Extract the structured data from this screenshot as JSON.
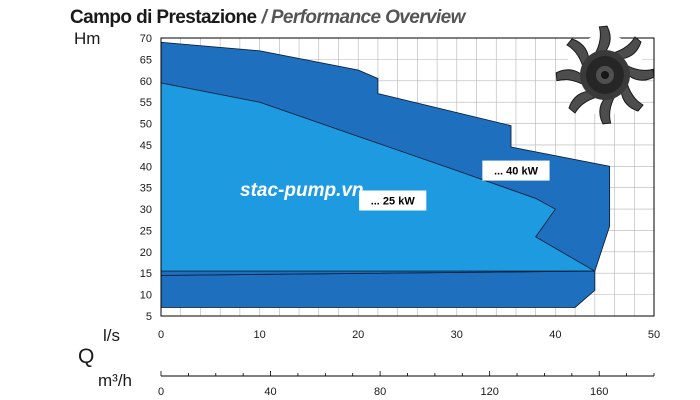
{
  "chart_data": {
    "type": "area",
    "title": "Campo di Prestazione",
    "subtitle": "Performance Overview",
    "ylabel": "Hm",
    "xlabel": "Q",
    "x_unit_primary": "l/s",
    "x_unit_secondary": "m³/h",
    "xlim": [
      0,
      50
    ],
    "ylim": [
      5,
      70
    ],
    "x_ticks": [
      0,
      10,
      20,
      30,
      40,
      50
    ],
    "y_ticks": [
      5,
      10,
      15,
      20,
      25,
      30,
      35,
      40,
      45,
      50,
      55,
      60,
      65,
      70
    ],
    "x2_ticks": [
      0,
      40,
      80,
      120,
      160
    ],
    "x2_factor": 3.6,
    "grid": true,
    "series": [
      {
        "name": "... 40 kW",
        "color": "#1f6fbf",
        "label_at": [
          36,
          39
        ],
        "points": [
          [
            0,
            69
          ],
          [
            10,
            67
          ],
          [
            20,
            62.5
          ],
          [
            22,
            60.5
          ],
          [
            22,
            57
          ],
          [
            35.5,
            49.5
          ],
          [
            35.5,
            44.5
          ],
          [
            45.5,
            40
          ],
          [
            45.5,
            26
          ],
          [
            44,
            15.5
          ],
          [
            44,
            11
          ],
          [
            42,
            7
          ],
          [
            0,
            7
          ]
        ]
      },
      {
        "name": "... 25 kW",
        "color": "#1e9be0",
        "label_at": [
          23.5,
          32
        ],
        "points": [
          [
            0,
            59.5
          ],
          [
            10,
            55
          ],
          [
            20,
            47
          ],
          [
            30,
            39
          ],
          [
            38,
            32.5
          ],
          [
            40,
            30
          ],
          [
            38,
            23.5
          ],
          [
            44,
            15.5
          ],
          [
            0,
            14.5
          ]
        ]
      },
      {
        "name": "",
        "color": "#1f6fbf",
        "points": [
          [
            0,
            14.5
          ],
          [
            44,
            15.5
          ],
          [
            0,
            15.5
          ]
        ]
      }
    ],
    "annotations": [
      "stac-pump.vn"
    ]
  },
  "image": {
    "icon": "impeller-icon"
  }
}
